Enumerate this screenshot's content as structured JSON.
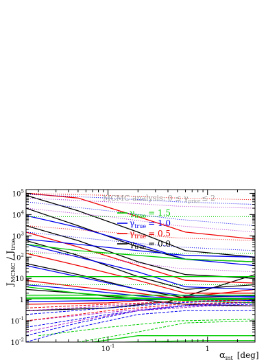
{
  "chart_data": {
    "type": "line",
    "title_text": "MCMC analysis: 0 ≤ γ",
    "title_sub": "prior",
    "title_tail": "≤ 2",
    "ylabel_main": "J",
    "ylabel_sub1": "MCMC",
    "ylabel_mid": " / J",
    "ylabel_sub2": "true",
    "xlabel_main": "α",
    "xlabel_sub": "int",
    "xlabel_unit": "[deg]",
    "x_scale": "log",
    "y_scale": "log",
    "xlim": [
      0.015,
      3.0
    ],
    "ylim": [
      0.01,
      150000
    ],
    "x_ticks": [
      {
        "value": 0.1,
        "base": "10",
        "exp": "-1"
      },
      {
        "value": 1,
        "base": "1",
        "exp": ""
      }
    ],
    "y_ticks": [
      {
        "value": 0.01,
        "base": "10",
        "exp": "-2"
      },
      {
        "value": 0.1,
        "base": "10",
        "exp": "-1"
      },
      {
        "value": 1,
        "base": "1",
        "exp": ""
      },
      {
        "value": 10,
        "base": "10",
        "exp": ""
      },
      {
        "value": 100,
        "base": "10",
        "exp": "2"
      },
      {
        "value": 1000,
        "base": "10",
        "exp": "3"
      },
      {
        "value": 10000,
        "base": "10",
        "exp": "4"
      },
      {
        "value": 100000,
        "base": "10",
        "exp": "5"
      }
    ],
    "legend": [
      {
        "label": "γ",
        "sub": "true",
        "value": "= 1.5",
        "color": "#00cc00"
      },
      {
        "label": "γ",
        "sub": "true",
        "value": "= 1.0",
        "color": "#0000ee"
      },
      {
        "label": "γ",
        "sub": "true",
        "value": "= 0.5",
        "color": "#ee0000"
      },
      {
        "label": "γ",
        "sub": "true",
        "value": "= 0.0",
        "color": "#000000"
      }
    ],
    "legend_placement": "upper-center",
    "series": [
      {
        "color": "#000000",
        "style": "solid",
        "x": [
          0.015,
          0.05,
          0.2,
          0.6,
          3.0
        ],
        "y": [
          80000,
          15000,
          1500,
          200,
          100
        ]
      },
      {
        "color": "#000000",
        "style": "solid",
        "x": [
          0.015,
          0.05,
          0.2,
          0.6,
          3.0
        ],
        "y": [
          20000,
          3000,
          300,
          80,
          60
        ]
      },
      {
        "color": "#000000",
        "style": "solid",
        "x": [
          0.015,
          0.05,
          0.2,
          0.6,
          3.0
        ],
        "y": [
          3000,
          600,
          60,
          15,
          10
        ]
      },
      {
        "color": "#000000",
        "style": "solid",
        "x": [
          0.015,
          0.05,
          0.2,
          0.6,
          3.0
        ],
        "y": [
          600,
          120,
          12,
          3,
          5
        ]
      },
      {
        "color": "#000000",
        "style": "solid",
        "x": [
          0.015,
          0.05,
          0.2,
          0.6,
          3.0
        ],
        "y": [
          50,
          15,
          3,
          1.2,
          1.5
        ]
      },
      {
        "color": "#000000",
        "style": "solid",
        "x": [
          0.015,
          0.05,
          0.2,
          0.6,
          3.0
        ],
        "y": [
          3,
          2,
          1,
          0.6,
          0.5
        ]
      },
      {
        "color": "#000000",
        "style": "solid",
        "x": [
          0.015,
          0.1,
          0.4,
          1,
          3.0
        ],
        "y": [
          0.3,
          0.4,
          0.8,
          3,
          15
        ]
      },
      {
        "color": "#ee0000",
        "style": "solid",
        "x": [
          0.015,
          0.05,
          0.2,
          0.6,
          3.0
        ],
        "y": [
          100000,
          60000,
          8000,
          1500,
          700
        ]
      },
      {
        "color": "#ee0000",
        "style": "solid",
        "x": [
          0.015,
          0.05,
          0.2,
          0.6,
          3.0
        ],
        "y": [
          1500,
          300,
          40,
          8,
          6
        ]
      },
      {
        "color": "#ee0000",
        "style": "solid",
        "x": [
          0.015,
          0.05,
          0.2,
          0.6,
          3.0
        ],
        "y": [
          150,
          40,
          8,
          2,
          2
        ]
      },
      {
        "color": "#ee0000",
        "style": "solid",
        "x": [
          0.015,
          0.05,
          0.2,
          0.6,
          3.0
        ],
        "y": [
          8,
          4,
          2,
          1,
          1.1
        ]
      },
      {
        "color": "#ee0000",
        "style": "solid",
        "x": [
          0.015,
          0.1,
          0.5,
          3.0
        ],
        "y": [
          0.6,
          0.7,
          1.2,
          3
        ]
      },
      {
        "color": "#0000ee",
        "style": "solid",
        "x": [
          0.015,
          0.05,
          0.2,
          0.6,
          3.0
        ],
        "y": [
          9000,
          2500,
          400,
          80,
          40
        ]
      },
      {
        "color": "#0000ee",
        "style": "solid",
        "x": [
          0.015,
          0.05,
          0.2,
          0.6,
          3.0
        ],
        "y": [
          700,
          400,
          200,
          120,
          100
        ]
      },
      {
        "color": "#0000ee",
        "style": "solid",
        "x": [
          0.015,
          0.05,
          0.2,
          0.6,
          3.0
        ],
        "y": [
          400,
          100,
          20,
          4,
          3
        ]
      },
      {
        "color": "#0000ee",
        "style": "solid",
        "x": [
          0.015,
          0.05,
          0.2,
          0.6,
          3.0
        ],
        "y": [
          40,
          12,
          3,
          1.5,
          1.4
        ]
      },
      {
        "color": "#0000ee",
        "style": "solid",
        "x": [
          0.015,
          0.05,
          0.2,
          0.6,
          3.0
        ],
        "y": [
          5,
          3,
          1.5,
          1,
          0.9
        ]
      },
      {
        "color": "#0000ee",
        "style": "solid",
        "x": [
          0.015,
          0.1,
          0.5,
          3.0
        ],
        "y": [
          0.8,
          0.9,
          1,
          1.2
        ]
      },
      {
        "color": "#00cc00",
        "style": "solid",
        "x": [
          0.015,
          3.0
        ],
        "y": [
          12,
          12
        ]
      },
      {
        "color": "#00cc00",
        "style": "solid",
        "x": [
          0.015,
          3.0
        ],
        "y": [
          1.6,
          1.6
        ]
      },
      {
        "color": "#00cc00",
        "style": "solid",
        "x": [
          0.015,
          3.0
        ],
        "y": [
          1.1,
          1.1
        ]
      },
      {
        "color": "#00cc00",
        "style": "solid",
        "x": [
          0.015,
          0.2,
          0.6,
          3.0
        ],
        "y": [
          1.3,
          1.1,
          0.9,
          0.7
        ]
      },
      {
        "color": "#00cc00",
        "style": "solid",
        "x": [
          0.015,
          0.05,
          0.2,
          0.6,
          3.0
        ],
        "y": [
          4,
          2,
          1.2,
          1,
          1
        ]
      },
      {
        "color": "#00cc00",
        "style": "solid",
        "x": [
          0.015,
          0.05,
          0.2,
          0.6,
          3.0
        ],
        "y": [
          400,
          200,
          120,
          80,
          60
        ]
      },
      {
        "color": "#00cc00",
        "style": "dashed",
        "x": [
          0.05,
          0.2,
          0.6,
          3.0
        ],
        "y": [
          0.01,
          0.03,
          0.08,
          0.1
        ]
      },
      {
        "color": "#00cc00",
        "style": "dashed",
        "x": [
          0.02,
          0.1,
          0.5,
          3.0
        ],
        "y": [
          0.02,
          0.05,
          0.1,
          0.12
        ]
      },
      {
        "color": "#00cc00",
        "style": "solid",
        "x": [
          0.07,
          0.2,
          1,
          3.0
        ],
        "y": [
          0.01,
          0.02,
          0.02,
          0.02
        ]
      },
      {
        "color": "#00cc00",
        "style": "solid",
        "x": [
          0.15,
          1,
          3.0
        ],
        "y": [
          0.01,
          0.012,
          0.012
        ]
      },
      {
        "color": "#0000ee",
        "style": "dashed",
        "x": [
          0.015,
          0.05,
          0.2,
          0.6,
          3.0
        ],
        "y": [
          0.01,
          0.05,
          0.2,
          0.3,
          0.3
        ]
      },
      {
        "color": "#0000ee",
        "style": "dashed",
        "x": [
          0.015,
          0.05,
          0.2,
          0.6,
          3.0
        ],
        "y": [
          0.02,
          0.08,
          0.3,
          0.5,
          0.6
        ]
      },
      {
        "color": "#0000ee",
        "style": "dashed",
        "x": [
          0.015,
          0.1,
          0.5,
          3.0
        ],
        "y": [
          0.05,
          0.2,
          0.5,
          0.8
        ]
      },
      {
        "color": "#0000ee",
        "style": "dashed",
        "x": [
          0.015,
          0.1,
          0.5,
          3.0
        ],
        "y": [
          0.2,
          0.4,
          0.7,
          1
        ]
      },
      {
        "color": "#aa22cc",
        "style": "dashed",
        "x": [
          0.015,
          0.05,
          0.2,
          1,
          3.0
        ],
        "y": [
          0.03,
          0.1,
          0.3,
          0.5,
          0.5
        ]
      },
      {
        "color": "#aa22cc",
        "style": "dashed",
        "x": [
          0.015,
          0.1,
          0.5,
          3.0
        ],
        "y": [
          0.1,
          0.25,
          0.5,
          0.7
        ]
      },
      {
        "color": "#aa22cc",
        "style": "dashed",
        "x": [
          0.015,
          0.1,
          0.5,
          3.0
        ],
        "y": [
          0.3,
          0.5,
          0.8,
          1
        ]
      },
      {
        "color": "#ee0000",
        "style": "dashed",
        "x": [
          0.015,
          0.1,
          0.5,
          3.0
        ],
        "y": [
          0.1,
          0.3,
          0.6,
          0.8
        ]
      },
      {
        "color": "#ee0000",
        "style": "dashed",
        "x": [
          0.015,
          0.1,
          0.5,
          3.0
        ],
        "y": [
          0.4,
          0.6,
          0.8,
          1
        ]
      },
      {
        "color": "#00cc00",
        "style": "dotted",
        "x": [
          0.015,
          3.0
        ],
        "y": [
          8000,
          8000
        ]
      },
      {
        "color": "#00cc00",
        "style": "dotted",
        "x": [
          0.015,
          3.0
        ],
        "y": [
          150,
          150
        ]
      },
      {
        "color": "#00cc00",
        "style": "dotted",
        "x": [
          0.015,
          3.0
        ],
        "y": [
          5,
          5
        ]
      },
      {
        "color": "#0000ee",
        "style": "dotted",
        "x": [
          0.015,
          0.1,
          0.5,
          3.0
        ],
        "y": [
          90000,
          60000,
          40000,
          30000
        ]
      },
      {
        "color": "#0000ee",
        "style": "dotted",
        "x": [
          0.015,
          0.1,
          0.5,
          3.0
        ],
        "y": [
          40000,
          15000,
          6000,
          3000
        ]
      },
      {
        "color": "#0000ee",
        "style": "dotted",
        "x": [
          0.015,
          0.1,
          0.5,
          3.0
        ],
        "y": [
          1500,
          600,
          300,
          200
        ]
      },
      {
        "color": "#aa22cc",
        "style": "dotted",
        "x": [
          0.015,
          0.1,
          0.5,
          3.0
        ],
        "y": [
          60000,
          40000,
          25000,
          20000
        ]
      },
      {
        "color": "#aa22cc",
        "style": "dotted",
        "x": [
          0.015,
          0.1,
          0.5,
          3.0
        ],
        "y": [
          20000,
          8000,
          3000,
          1500
        ]
      },
      {
        "color": "#aa22cc",
        "style": "dotted",
        "x": [
          0.015,
          0.1,
          0.5,
          3.0
        ],
        "y": [
          200,
          80,
          30,
          20
        ]
      },
      {
        "color": "#ee0000",
        "style": "dotted",
        "x": [
          0.015,
          0.1,
          0.5,
          3.0
        ],
        "y": [
          100000,
          80000,
          60000,
          50000
        ]
      },
      {
        "color": "#ee0000",
        "style": "dotted",
        "x": [
          0.015,
          0.1,
          0.5,
          3.0
        ],
        "y": [
          3000,
          1500,
          800,
          600
        ]
      }
    ]
  }
}
